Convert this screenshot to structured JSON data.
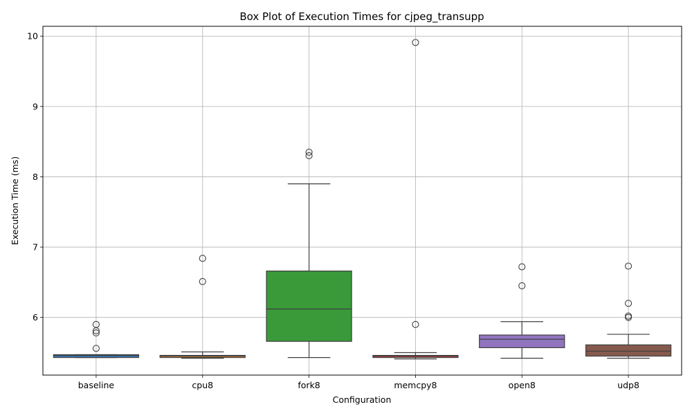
{
  "chart_data": {
    "type": "box",
    "title": "Box Plot of Execution Times for cjpeg_transupp",
    "xlabel": "Configuration",
    "ylabel": "Execution Time (ms)",
    "ylim": [
      5.18,
      10.14
    ],
    "yticks": [
      6,
      7,
      8,
      9,
      10
    ],
    "grid": true,
    "categories": [
      "baseline",
      "cpu8",
      "fork8",
      "memcpy8",
      "open8",
      "udp8"
    ],
    "colors": [
      "#3a75af",
      "#d6813a",
      "#3a9a3a",
      "#c43b3c",
      "#9174bf",
      "#855a4d"
    ],
    "boxes": [
      {
        "whisker_low": 5.43,
        "q1": 5.43,
        "median": 5.46,
        "q3": 5.47,
        "whisker_high": 5.47,
        "outliers": [
          5.9,
          5.81,
          5.78,
          5.56
        ]
      },
      {
        "whisker_low": 5.42,
        "q1": 5.43,
        "median": 5.45,
        "q3": 5.46,
        "whisker_high": 5.51,
        "outliers": [
          6.84,
          6.51
        ]
      },
      {
        "whisker_low": 5.43,
        "q1": 5.66,
        "median": 6.12,
        "q3": 6.66,
        "whisker_high": 7.9,
        "outliers": [
          8.35,
          8.3
        ]
      },
      {
        "whisker_low": 5.41,
        "q1": 5.43,
        "median": 5.45,
        "q3": 5.46,
        "whisker_high": 5.5,
        "outliers": [
          9.91,
          5.9
        ]
      },
      {
        "whisker_low": 5.42,
        "q1": 5.57,
        "median": 5.69,
        "q3": 5.75,
        "whisker_high": 5.94,
        "outliers": [
          6.72,
          6.45
        ]
      },
      {
        "whisker_low": 5.42,
        "q1": 5.45,
        "median": 5.52,
        "q3": 5.61,
        "whisker_high": 5.76,
        "outliers": [
          6.73,
          6.2,
          6.02,
          6.0
        ]
      }
    ]
  }
}
